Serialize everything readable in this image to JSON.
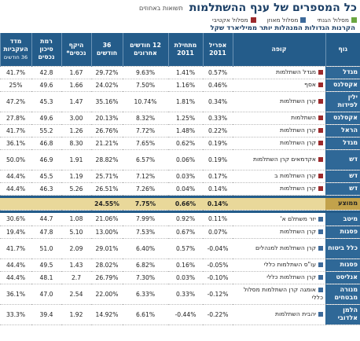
{
  "header": {
    "title": "כל המספרים של ענף ההשתלמות",
    "subtitle": "תשואות באחוזים"
  },
  "legend": [
    {
      "label": "מסלול הגנתי",
      "color": "#6aa640"
    },
    {
      "label": "מסלול מאוזן",
      "color": "#3d6a9a"
    },
    {
      "label": "מסלול אקטיבי",
      "color": "#9c2a2c"
    }
  ],
  "section_title": "הקרנות הגדולות המנהלות יותר ממיליארד שקל",
  "columns": [
    "גוף",
    "קופה",
    "אפריל 2011",
    "מתחילת 2011",
    "12 חודשים אחרונים",
    "36 חודשים",
    "היקף נכסים*",
    "רמת סיכון נכסים",
    "מדד העקביות",
    "36 חודשים"
  ],
  "colors": {
    "header": "#245c8a",
    "group": "#2f6897",
    "average": "#e9d89a"
  },
  "rows1": [
    {
      "group": "מגדל",
      "fund": "מגדל השתלמות",
      "marker": "#9c2a2c",
      "apr": "0.57%",
      "ytd": "1.41%",
      "m12": "9.63%",
      "m36": "29.72%",
      "assets": "1.67",
      "risk": "42.8",
      "cons": "41.7%"
    },
    {
      "group": "אקסלנס",
      "fund": "אסף",
      "marker": "#9c2a2c",
      "apr": "0.46%",
      "ytd": "1.16%",
      "m12": "7.50%",
      "m36": "24.02%",
      "assets": "1.66",
      "risk": "49.6",
      "cons": "25%"
    },
    {
      "group": "ילין לפידות",
      "fund": "קרן השתלמות",
      "marker": "#9c2a2c",
      "apr": "0.34%",
      "ytd": "1.81%",
      "m12": "10.74%",
      "m36": "35.16%",
      "assets": "1.47",
      "risk": "45.3",
      "cons": "47.2%",
      "tall": true
    },
    {
      "group": "אקסלנס",
      "fund": "השתלמות",
      "marker": "#9c2a2c",
      "apr": "0.33%",
      "ytd": "1.25%",
      "m12": "8.32%",
      "m36": "20.13%",
      "assets": "3.00",
      "risk": "49.6",
      "cons": "27.8%"
    },
    {
      "group": "הראל",
      "fund": "קרן השתלמות",
      "marker": "#9c2a2c",
      "apr": "0.22%",
      "ytd": "1.48%",
      "m12": "7.72%",
      "m36": "26.76%",
      "assets": "1.26",
      "risk": "55.2",
      "cons": "41.7%"
    },
    {
      "group": "מגדל",
      "fund": "קרן השתלמות",
      "marker": "#9c2a2c",
      "apr": "0.19%",
      "ytd": "0.62%",
      "m12": "7.65%",
      "m36": "21.21%",
      "assets": "8.30",
      "risk": "46.8",
      "cons": "36.1%"
    },
    {
      "group": "דש",
      "fund": "אקדמאים קרן השתלמות",
      "marker": "#9c2a2c",
      "apr": "0.19%",
      "ytd": "0.06%",
      "m12": "6.57%",
      "m36": "28.82%",
      "assets": "1.91",
      "risk": "46.9",
      "cons": "50.0%",
      "tall": true
    },
    {
      "group": "דש",
      "fund": "קרן השתלמות ב",
      "marker": "#9c2a2c",
      "apr": "0.17%",
      "ytd": "0.03%",
      "m12": "7.12%",
      "m36": "25.71%",
      "assets": "1.19",
      "risk": "45.5",
      "cons": "44.4%"
    },
    {
      "group": "דש",
      "fund": "קרן השתלמות",
      "marker": "#9c2a2c",
      "apr": "0.14%",
      "ytd": "0.04%",
      "m12": "7.26%",
      "m36": "26.51%",
      "assets": "5.26",
      "risk": "46.3",
      "cons": "44.4%"
    }
  ],
  "average": {
    "group": "ממוצע",
    "apr": "0.14%",
    "ytd": "0.66%",
    "m12": "7.75%",
    "m36": "24.55%"
  },
  "rows2": [
    {
      "group": "מיטב",
      "fund": "יזר משתלם א'",
      "marker": "#3d6a9a",
      "apr": "0.11%",
      "ytd": "0.92%",
      "m12": "7.99%",
      "m36": "21.06%",
      "assets": "1.08",
      "risk": "44.7",
      "cons": "30.6%"
    },
    {
      "group": "פסגות",
      "fund": "קרן השתלמות",
      "marker": "#3d6a9a",
      "apr": "0.07%",
      "ytd": "0.67%",
      "m12": "7.53%",
      "m36": "13.00%",
      "assets": "5.10",
      "risk": "47.8",
      "cons": "19.4%"
    },
    {
      "group": "כלל ביטוח",
      "fund": "קרן השתלמות למנהלים",
      "marker": "#3d6a9a",
      "apr": "-0.04%",
      "ytd": "0.57%",
      "m12": "6.40%",
      "m36": "29.01%",
      "assets": "2.09",
      "risk": "51.0",
      "cons": "41.7%",
      "tall": true
    },
    {
      "group": "פסגות",
      "fund": "עו\"ס השתלמות כללי",
      "marker": "#3d6a9a",
      "apr": "-0.05%",
      "ytd": "0.16%",
      "m12": "6.82%",
      "m36": "28.02%",
      "assets": "1.43",
      "risk": "49.5",
      "cons": "44.4%"
    },
    {
      "group": "אנליסט",
      "fund": "קרן השתלמות כללי",
      "marker": "#3d6a9a",
      "apr": "-0.10%",
      "ytd": "0.03%",
      "m12": "7.30%",
      "m36": "26.79%",
      "assets": "2.7",
      "risk": "48.1",
      "cons": "44.4%"
    },
    {
      "group": "מנורה מבטחים",
      "fund": "אומגה קרן השתלמות מסלול כללי",
      "marker": "#3d6a9a",
      "apr": "-0.12%",
      "ytd": "0.33%",
      "m12": "6.33%",
      "m36": "22.00%",
      "assets": "2.54",
      "risk": "47.0",
      "cons": "36.1%",
      "tall": true
    },
    {
      "group": "הלמן אלדובי",
      "fund": "יהבית השתלמות",
      "marker": "#3d6a9a",
      "apr": "-0.22%",
      "ytd": "-0.44%",
      "m12": "6.61%",
      "m36": "14.92%",
      "assets": "1.92",
      "risk": "39.4",
      "cons": "33.3%",
      "tall": true
    }
  ]
}
